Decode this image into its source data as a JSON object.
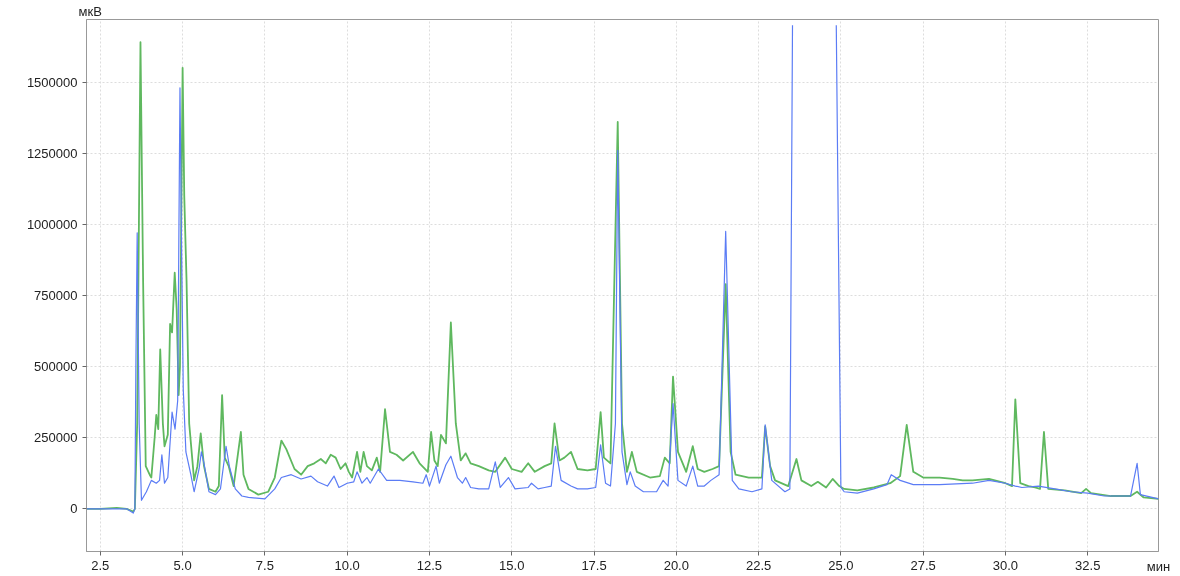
{
  "chart_data": {
    "type": "line",
    "xlabel": "мин",
    "ylabel": "мкВ",
    "xlim": [
      2.08,
      34.65
    ],
    "ylim": [
      -150000,
      1720000
    ],
    "xticks": [
      {
        "value": 2.5,
        "label": "2.5"
      },
      {
        "value": 5,
        "label": "5.0"
      },
      {
        "value": 7.5,
        "label": "7.5"
      },
      {
        "value": 10,
        "label": "10.0"
      },
      {
        "value": 12.5,
        "label": "12.5"
      },
      {
        "value": 15,
        "label": "15.0"
      },
      {
        "value": 17.5,
        "label": "17.5"
      },
      {
        "value": 20,
        "label": "20.0"
      },
      {
        "value": 22.5,
        "label": "22.5"
      },
      {
        "value": 25,
        "label": "25.0"
      },
      {
        "value": 27.5,
        "label": "27.5"
      },
      {
        "value": 30,
        "label": "30.0"
      },
      {
        "value": 32.5,
        "label": "32.5"
      }
    ],
    "yticks": [
      0,
      250000,
      500000,
      750000,
      1000000,
      1250000,
      1500000
    ],
    "grid": true,
    "line_style": "solid",
    "marker": "none",
    "series": [
      {
        "color": "#5fb85f",
        "x": [
          2.08,
          2.5,
          3.0,
          3.3,
          3.5,
          3.55,
          3.62,
          3.72,
          3.8,
          3.88,
          4.0,
          4.05,
          4.15,
          4.2,
          4.26,
          4.32,
          4.4,
          4.45,
          4.55,
          4.62,
          4.68,
          4.76,
          4.82,
          4.88,
          4.92,
          5.0,
          5.05,
          5.12,
          5.2,
          5.35,
          5.45,
          5.55,
          5.65,
          5.8,
          6.0,
          6.1,
          6.2,
          6.28,
          6.4,
          6.55,
          6.77,
          6.85,
          7.0,
          7.3,
          7.6,
          7.8,
          8.0,
          8.15,
          8.4,
          8.6,
          8.8,
          9.0,
          9.2,
          9.35,
          9.5,
          9.65,
          9.8,
          9.95,
          10.05,
          10.15,
          10.3,
          10.4,
          10.5,
          10.6,
          10.75,
          10.9,
          11.0,
          11.15,
          11.3,
          11.5,
          11.7,
          12.0,
          12.2,
          12.45,
          12.55,
          12.65,
          12.75,
          12.85,
          13.0,
          13.15,
          13.3,
          13.45,
          13.6,
          13.75,
          14.0,
          14.3,
          14.5,
          14.8,
          15.0,
          15.3,
          15.5,
          15.7,
          16.0,
          16.2,
          16.3,
          16.45,
          16.6,
          16.8,
          17.0,
          17.3,
          17.55,
          17.7,
          17.8,
          18.0,
          18.22,
          18.35,
          18.5,
          18.65,
          18.8,
          19.2,
          19.5,
          19.65,
          19.8,
          19.9,
          20.05,
          20.3,
          20.5,
          20.65,
          20.85,
          21.1,
          21.3,
          21.5,
          21.65,
          21.8,
          22.2,
          22.6,
          22.7,
          22.85,
          23.0,
          23.4,
          23.65,
          23.8,
          24.1,
          24.3,
          24.55,
          24.75,
          24.95,
          25.1,
          25.5,
          26.0,
          26.5,
          26.8,
          27.0,
          27.2,
          27.5,
          28.0,
          28.4,
          28.7,
          29.0,
          29.5,
          30.0,
          30.2,
          30.3,
          30.45,
          30.7,
          30.9,
          31.05,
          31.17,
          31.3,
          31.8,
          32.3,
          32.45,
          32.6,
          33.2,
          33.8,
          34.0,
          34.2,
          34.65
        ],
        "values": [
          0,
          0,
          3000,
          0,
          -10000,
          0,
          300000,
          1640000,
          800000,
          150000,
          120000,
          110000,
          250000,
          330000,
          280000,
          560000,
          300000,
          220000,
          260000,
          650000,
          620000,
          830000,
          700000,
          400000,
          500000,
          1550000,
          1100000,
          800000,
          300000,
          100000,
          150000,
          265000,
          150000,
          70000,
          60000,
          80000,
          400000,
          180000,
          150000,
          80000,
          270000,
          120000,
          70000,
          50000,
          60000,
          110000,
          240000,
          210000,
          140000,
          120000,
          150000,
          160000,
          175000,
          160000,
          190000,
          180000,
          140000,
          160000,
          130000,
          110000,
          200000,
          130000,
          200000,
          150000,
          135000,
          180000,
          130000,
          350000,
          200000,
          190000,
          170000,
          200000,
          160000,
          130000,
          270000,
          170000,
          150000,
          260000,
          230000,
          655000,
          300000,
          170000,
          195000,
          160000,
          150000,
          135000,
          130000,
          180000,
          140000,
          130000,
          160000,
          130000,
          150000,
          160000,
          300000,
          170000,
          180000,
          200000,
          140000,
          135000,
          140000,
          340000,
          180000,
          160000,
          1360000,
          300000,
          130000,
          200000,
          130000,
          110000,
          115000,
          180000,
          160000,
          465000,
          200000,
          130000,
          220000,
          140000,
          130000,
          140000,
          150000,
          790000,
          200000,
          120000,
          110000,
          110000,
          290000,
          150000,
          100000,
          80000,
          175000,
          100000,
          80000,
          95000,
          75000,
          105000,
          80000,
          70000,
          65000,
          75000,
          90000,
          115000,
          295000,
          130000,
          110000,
          110000,
          105000,
          100000,
          100000,
          105000,
          90000,
          80000,
          385000,
          90000,
          80000,
          75000,
          70000,
          270000,
          70000,
          65000,
          55000,
          70000,
          55000,
          45000,
          45000,
          60000,
          40000,
          35000
        ]
      },
      {
        "color": "#5b7cf5",
        "x": [
          2.08,
          3.3,
          3.5,
          3.55,
          3.58,
          3.62,
          3.68,
          3.75,
          3.9,
          4.05,
          4.2,
          4.3,
          4.37,
          4.45,
          4.55,
          4.68,
          4.77,
          4.85,
          4.92,
          4.97,
          5.02,
          5.1,
          5.25,
          5.35,
          5.5,
          5.57,
          5.65,
          5.8,
          6.0,
          6.15,
          6.32,
          6.42,
          6.6,
          6.8,
          7.0,
          7.5,
          7.8,
          8.0,
          8.3,
          8.6,
          8.9,
          9.1,
          9.4,
          9.6,
          9.75,
          10.0,
          10.2,
          10.3,
          10.45,
          10.6,
          10.7,
          10.95,
          11.2,
          11.6,
          12.0,
          12.3,
          12.4,
          12.5,
          12.7,
          12.8,
          13.0,
          13.15,
          13.35,
          13.5,
          13.6,
          13.75,
          14.0,
          14.3,
          14.5,
          14.65,
          14.9,
          15.1,
          15.5,
          15.6,
          15.8,
          16.0,
          16.2,
          16.33,
          16.5,
          16.8,
          17.0,
          17.3,
          17.55,
          17.7,
          17.85,
          18.0,
          18.15,
          18.22,
          18.35,
          18.5,
          18.6,
          18.75,
          19.0,
          19.4,
          19.6,
          19.75,
          19.9,
          20.05,
          20.3,
          20.5,
          20.65,
          20.85,
          21.05,
          21.3,
          21.5,
          21.7,
          21.9,
          22.3,
          22.6,
          22.7,
          22.9,
          23.3,
          23.45,
          23.53,
          24.2,
          24.86,
          25.0,
          25.1,
          25.5,
          26.0,
          26.4,
          26.53,
          26.8,
          27.2,
          28.0,
          29.0,
          29.5,
          30.0,
          30.3,
          30.5,
          31.0,
          31.5,
          32.0,
          32.5,
          33.0,
          33.8,
          34.0,
          34.1,
          34.65
        ],
        "values": [
          0,
          0,
          -15000,
          0,
          500000,
          970000,
          300000,
          30000,
          60000,
          100000,
          90000,
          100000,
          190000,
          90000,
          110000,
          340000,
          280000,
          380000,
          1480000,
          900000,
          420000,
          200000,
          120000,
          60000,
          140000,
          200000,
          160000,
          60000,
          50000,
          70000,
          220000,
          150000,
          70000,
          45000,
          40000,
          35000,
          70000,
          110000,
          120000,
          105000,
          115000,
          95000,
          80000,
          115000,
          75000,
          90000,
          95000,
          130000,
          90000,
          110000,
          90000,
          140000,
          100000,
          100000,
          95000,
          90000,
          120000,
          80000,
          150000,
          90000,
          155000,
          185000,
          110000,
          90000,
          110000,
          75000,
          70000,
          70000,
          165000,
          75000,
          110000,
          70000,
          75000,
          90000,
          70000,
          75000,
          80000,
          220000,
          100000,
          80000,
          70000,
          70000,
          75000,
          225000,
          90000,
          80000,
          300000,
          1260000,
          200000,
          85000,
          130000,
          80000,
          60000,
          60000,
          100000,
          80000,
          370000,
          100000,
          80000,
          150000,
          80000,
          80000,
          100000,
          120000,
          975000,
          100000,
          70000,
          60000,
          70000,
          295000,
          100000,
          60000,
          70000,
          1700000,
          null,
          1700000,
          75000,
          60000,
          55000,
          70000,
          85000,
          120000,
          100000,
          85000,
          85000,
          90000,
          100000,
          90000,
          80000,
          75000,
          80000,
          70000,
          60000,
          55000,
          45000,
          45000,
          160000,
          50000,
          35000
        ]
      }
    ]
  }
}
